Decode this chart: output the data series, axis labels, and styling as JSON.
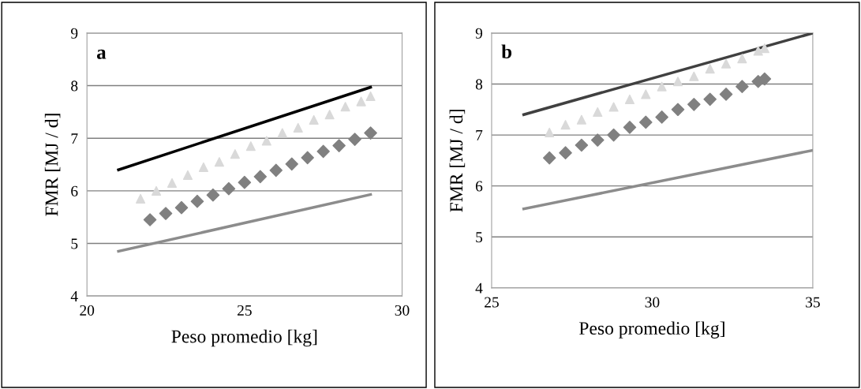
{
  "chart_data": [
    {
      "type": "line",
      "annotations": [
        "a"
      ],
      "xlabel": "Peso promedio [kg]",
      "ylabel": "FMR [MJ / d]",
      "xlim": [
        20,
        30
      ],
      "xticks": [
        20,
        25,
        30
      ],
      "ylim": [
        4,
        9
      ],
      "yticks": [
        4,
        5,
        6,
        7,
        8,
        9
      ],
      "grid": "y",
      "marker": "none",
      "line_style": "solid",
      "series": [
        {
          "color": "#000000",
          "x": [
            21,
            29
          ],
          "values": [
            6.4,
            7.97
          ]
        },
        {
          "type": "scatter",
          "marker": "triangle",
          "color": "#d9d9d9",
          "x": [
            21.7,
            22.2,
            22.7,
            23.2,
            23.7,
            24.2,
            24.7,
            25.2,
            25.7,
            26.2,
            26.7,
            27.2,
            27.7,
            28.2,
            28.7,
            29.0
          ],
          "values": [
            5.85,
            6.0,
            6.15,
            6.3,
            6.45,
            6.55,
            6.7,
            6.85,
            6.95,
            7.1,
            7.2,
            7.35,
            7.45,
            7.6,
            7.7,
            7.8
          ]
        },
        {
          "type": "scatter",
          "marker": "diamond",
          "color": "#808080",
          "x": [
            22,
            22.5,
            23,
            23.5,
            24,
            24.5,
            25,
            25.5,
            26,
            26.5,
            27,
            27.5,
            28,
            28.5,
            29
          ],
          "values": [
            5.45,
            5.57,
            5.68,
            5.8,
            5.92,
            6.04,
            6.16,
            6.27,
            6.39,
            6.51,
            6.63,
            6.75,
            6.86,
            6.98,
            7.1
          ]
        },
        {
          "color": "#8c8c8c",
          "x": [
            21,
            29
          ],
          "values": [
            4.85,
            5.93
          ]
        }
      ]
    },
    {
      "type": "line",
      "annotations": [
        "b"
      ],
      "xlabel": "Peso promedio [kg]",
      "ylabel": "FMR [MJ / d]",
      "xlim": [
        25,
        35
      ],
      "xticks": [
        25,
        30,
        35
      ],
      "ylim": [
        4,
        9
      ],
      "yticks": [
        4,
        5,
        6,
        7,
        8,
        9
      ],
      "grid": "y",
      "marker": "none",
      "line_style": "solid",
      "series": [
        {
          "color": "#404040",
          "x": [
            26,
            35
          ],
          "values": [
            7.4,
            9.0
          ]
        },
        {
          "type": "scatter",
          "marker": "triangle",
          "color": "#d9d9d9",
          "x": [
            26.8,
            27.3,
            27.8,
            28.3,
            28.8,
            29.3,
            29.8,
            30.3,
            30.8,
            31.3,
            31.8,
            32.3,
            32.8,
            33.3,
            33.5
          ],
          "values": [
            7.05,
            7.2,
            7.3,
            7.45,
            7.55,
            7.7,
            7.8,
            7.95,
            8.05,
            8.15,
            8.3,
            8.4,
            8.5,
            8.65,
            8.7
          ]
        },
        {
          "type": "scatter",
          "marker": "diamond",
          "color": "#808080",
          "x": [
            26.8,
            27.3,
            27.8,
            28.3,
            28.8,
            29.3,
            29.8,
            30.3,
            30.8,
            31.3,
            31.8,
            32.3,
            32.8,
            33.3,
            33.5
          ],
          "values": [
            6.55,
            6.65,
            6.8,
            6.9,
            7.0,
            7.15,
            7.25,
            7.35,
            7.5,
            7.6,
            7.7,
            7.8,
            7.95,
            8.05,
            8.1
          ]
        },
        {
          "color": "#8c8c8c",
          "x": [
            26,
            35
          ],
          "values": [
            5.55,
            6.7
          ]
        }
      ]
    }
  ]
}
